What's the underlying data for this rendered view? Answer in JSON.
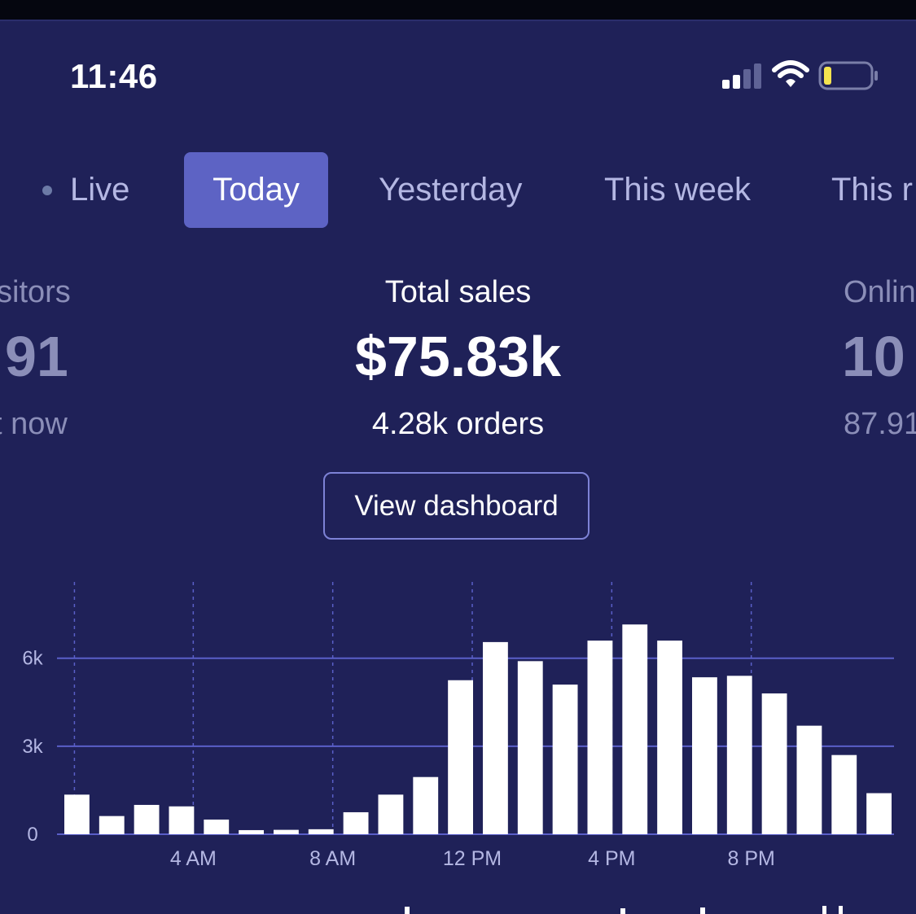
{
  "status": {
    "time": "11:46",
    "signal_icon": "cellular-signal-icon",
    "wifi_icon": "wifi-icon",
    "battery_icon": "battery-low-icon",
    "battery_color": "#f4e34f"
  },
  "tabs": [
    {
      "label": "Live",
      "active": false
    },
    {
      "label": "Today",
      "active": true
    },
    {
      "label": "Yesterday",
      "active": false
    },
    {
      "label": "This week",
      "active": false
    },
    {
      "label": "This r",
      "active": false
    }
  ],
  "metrics": {
    "left": {
      "label": "sitors",
      "value": "91",
      "sub": "t now"
    },
    "center": {
      "label": "Total sales",
      "value": "$75.83k",
      "sub": "4.28k orders"
    },
    "right": {
      "label": "Onlin",
      "value": "10",
      "sub": "87.91"
    }
  },
  "actions": {
    "view_dashboard": "View dashboard"
  },
  "colors": {
    "background": "#1f2158",
    "active_tab": "#5d63c4",
    "gridline": "#5a5fc8",
    "bar": "#ffffff"
  },
  "chart_data": {
    "type": "bar",
    "x_tick_labels": [
      "4 AM",
      "8 AM",
      "12 PM",
      "4 PM",
      "8 PM"
    ],
    "x_tick_hours": [
      4,
      8,
      12,
      16,
      20
    ],
    "categories": [
      0,
      1,
      2,
      3,
      4,
      5,
      6,
      7,
      8,
      9,
      10,
      11,
      12,
      13,
      14,
      15,
      16,
      17,
      18,
      19,
      20,
      21,
      22,
      23
    ],
    "values": [
      1350,
      620,
      1000,
      950,
      500,
      140,
      150,
      170,
      750,
      1350,
      1950,
      5250,
      6550,
      5900,
      5100,
      6600,
      7150,
      6600,
      5350,
      5400,
      4800,
      3700,
      2700,
      1400
    ],
    "y_ticks": [
      0,
      3000,
      6000
    ],
    "y_tick_labels": [
      "0",
      "3k",
      "6k"
    ],
    "ylim": [
      0,
      8600
    ],
    "grid": true
  }
}
